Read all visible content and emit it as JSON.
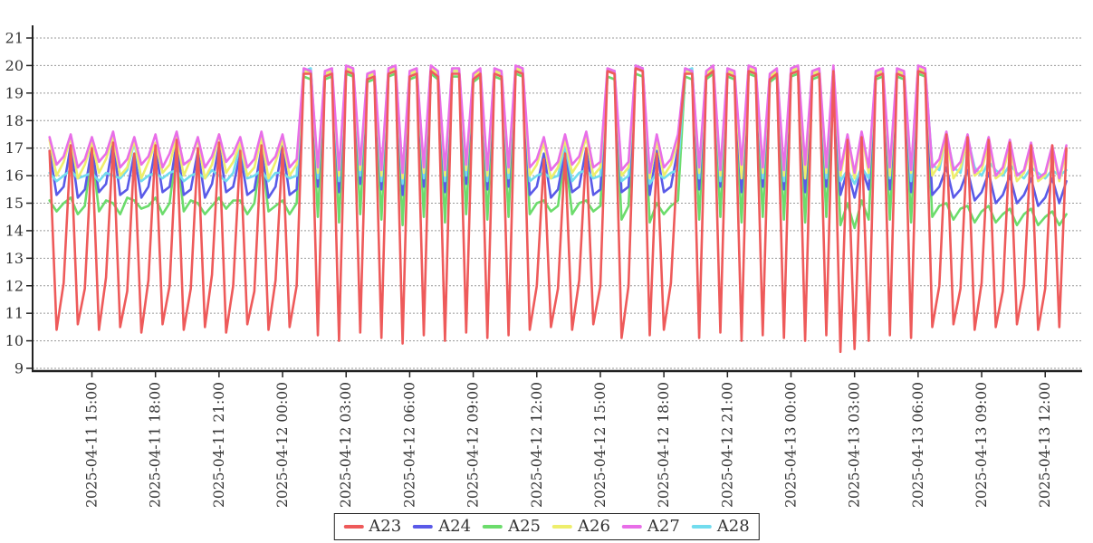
{
  "chart_data": {
    "type": "line",
    "title": "",
    "xlabel": "",
    "ylabel": "",
    "x_start": "2025-04-11 13:00",
    "x_step_minutes": 20,
    "x_tick_hours": [
      2,
      5,
      8,
      11,
      14,
      17,
      20,
      23,
      26,
      29,
      32,
      35,
      38,
      41,
      44,
      47
    ],
    "x_tick_labels": [
      "2025-04-11 15:00",
      "2025-04-11 18:00",
      "2025-04-11 21:00",
      "2025-04-12 00:00",
      "2025-04-12 03:00",
      "2025-04-12 06:00",
      "2025-04-12 09:00",
      "2025-04-12 12:00",
      "2025-04-12 15:00",
      "2025-04-12 18:00",
      "2025-04-12 21:00",
      "2025-04-13 00:00",
      "2025-04-13 03:00",
      "2025-04-13 06:00",
      "2025-04-13 09:00",
      "2025-04-13 12:00"
    ],
    "y_ticks": [
      9,
      10,
      11,
      12,
      13,
      14,
      15,
      16,
      17,
      18,
      19,
      20,
      21
    ],
    "ylim": [
      9,
      21.9
    ],
    "grid": "horizontal-dashed",
    "grid_color": "#999999",
    "axis_color": "#222222",
    "legend_position": "bottom-center",
    "series": [
      {
        "name": "A23",
        "color": "#ee5a5a",
        "values": [
          16.9,
          10.4,
          12.1,
          17.1,
          10.6,
          11.9,
          17.0,
          10.4,
          12.3,
          17.2,
          10.5,
          11.8,
          16.8,
          10.3,
          12.2,
          17.1,
          10.6,
          12.0,
          17.3,
          10.4,
          11.9,
          17.0,
          10.5,
          12.4,
          17.2,
          10.3,
          12.0,
          16.9,
          10.6,
          11.8,
          17.1,
          10.4,
          12.2,
          17.0,
          10.5,
          12.0,
          19.7,
          19.7,
          10.2,
          19.6,
          19.7,
          10.0,
          19.8,
          19.7,
          10.3,
          19.5,
          19.6,
          10.1,
          19.7,
          19.8,
          9.9,
          19.6,
          19.7,
          10.2,
          19.8,
          19.6,
          10.0,
          19.7,
          19.7,
          10.3,
          19.5,
          19.7,
          10.1,
          19.7,
          19.6,
          10.2,
          19.8,
          19.7,
          10.4,
          12.0,
          16.6,
          10.5,
          11.9,
          16.8,
          10.4,
          12.2,
          17.0,
          10.6,
          12.0,
          19.8,
          19.7,
          10.1,
          12.0,
          19.9,
          19.8,
          10.2,
          16.8,
          10.4,
          12.1,
          16.9,
          19.7,
          19.7,
          10.1,
          19.6,
          19.8,
          10.3,
          19.7,
          19.6,
          10.0,
          19.8,
          19.7,
          10.2,
          19.5,
          19.7,
          10.1,
          19.7,
          19.8,
          10.0,
          19.6,
          19.7,
          10.2,
          19.8,
          9.6,
          17.3,
          9.7,
          17.4,
          10.0,
          19.6,
          19.7,
          10.2,
          19.7,
          19.6,
          10.1,
          19.8,
          19.7,
          10.5,
          12.0,
          17.5,
          10.6,
          11.9,
          17.4,
          10.4,
          12.1,
          17.3,
          10.5,
          11.8,
          17.2,
          10.6,
          12.0,
          17.1,
          10.4,
          11.9,
          17.1,
          10.5,
          17.0
        ]
      },
      {
        "name": "A24",
        "color": "#5a5ae8",
        "values": [
          16.9,
          15.3,
          15.6,
          17.1,
          15.2,
          15.5,
          17.0,
          15.4,
          15.7,
          17.2,
          15.3,
          15.5,
          16.8,
          15.2,
          15.6,
          17.0,
          15.4,
          15.6,
          17.2,
          15.3,
          15.5,
          16.9,
          15.2,
          15.7,
          17.1,
          15.4,
          15.6,
          16.8,
          15.3,
          15.5,
          17.0,
          15.2,
          15.6,
          17.1,
          15.3,
          15.5,
          19.8,
          19.8,
          15.6,
          19.7,
          19.8,
          15.4,
          19.9,
          19.8,
          15.7,
          19.6,
          19.7,
          15.5,
          19.8,
          19.9,
          15.3,
          19.7,
          19.8,
          15.6,
          19.9,
          19.7,
          15.4,
          19.8,
          19.8,
          15.7,
          19.6,
          19.8,
          15.5,
          19.8,
          19.7,
          15.6,
          19.9,
          19.8,
          15.3,
          15.6,
          16.8,
          15.2,
          15.5,
          16.9,
          15.4,
          15.6,
          17.0,
          15.3,
          15.5,
          19.8,
          19.8,
          15.4,
          15.6,
          19.9,
          19.8,
          15.3,
          16.9,
          15.4,
          15.6,
          17.0,
          19.8,
          19.8,
          15.5,
          19.7,
          19.9,
          15.6,
          19.8,
          19.7,
          15.4,
          19.9,
          19.8,
          15.6,
          19.6,
          19.8,
          15.5,
          19.8,
          19.9,
          15.4,
          19.7,
          19.8,
          15.6,
          19.9,
          15.3,
          16.2,
          15.2,
          16.3,
          15.5,
          19.7,
          19.8,
          15.5,
          19.8,
          19.7,
          15.4,
          19.9,
          19.8,
          15.3,
          15.6,
          16.3,
          15.2,
          15.5,
          16.2,
          15.1,
          15.4,
          16.1,
          15.0,
          15.3,
          16.0,
          15.0,
          15.3,
          15.9,
          14.9,
          15.2,
          15.9,
          15.0,
          15.8
        ]
      },
      {
        "name": "A25",
        "color": "#6cdc6c",
        "values": [
          15.1,
          14.7,
          15.0,
          15.2,
          14.6,
          14.9,
          16.9,
          14.7,
          15.1,
          15.0,
          14.6,
          15.2,
          15.1,
          14.8,
          14.9,
          15.2,
          14.6,
          15.0,
          17.0,
          14.7,
          15.1,
          15.0,
          14.6,
          14.9,
          15.2,
          14.8,
          15.1,
          15.1,
          14.6,
          15.0,
          16.8,
          14.7,
          14.9,
          15.1,
          14.6,
          15.0,
          19.6,
          19.5,
          14.5,
          19.5,
          19.6,
          14.3,
          19.7,
          19.6,
          14.6,
          19.4,
          19.5,
          14.4,
          19.6,
          19.7,
          14.2,
          19.5,
          19.6,
          14.5,
          19.7,
          19.5,
          14.3,
          19.6,
          19.6,
          14.6,
          19.4,
          19.6,
          14.4,
          19.6,
          19.5,
          14.5,
          19.7,
          19.6,
          14.6,
          15.0,
          15.1,
          14.7,
          14.9,
          16.8,
          14.6,
          15.0,
          15.1,
          14.7,
          14.9,
          19.6,
          19.5,
          14.4,
          14.9,
          19.7,
          19.6,
          14.3,
          15.0,
          14.6,
          14.9,
          15.1,
          19.6,
          19.5,
          14.4,
          19.5,
          19.7,
          14.5,
          19.6,
          19.5,
          14.3,
          19.7,
          19.6,
          14.5,
          19.4,
          19.6,
          14.4,
          19.6,
          19.7,
          14.3,
          19.5,
          19.6,
          14.5,
          19.7,
          14.2,
          15.0,
          14.1,
          15.1,
          14.4,
          19.5,
          19.6,
          14.4,
          19.6,
          19.5,
          14.3,
          19.7,
          19.6,
          14.5,
          14.9,
          15.0,
          14.4,
          14.8,
          14.9,
          14.3,
          14.7,
          14.9,
          14.3,
          14.6,
          14.8,
          14.2,
          14.6,
          14.8,
          14.2,
          14.5,
          14.7,
          14.2,
          14.6
        ]
      },
      {
        "name": "A26",
        "color": "#eeee6c",
        "values": [
          17.3,
          16.0,
          16.5,
          17.4,
          15.9,
          16.4,
          17.2,
          16.1,
          16.6,
          17.4,
          16.0,
          16.3,
          17.3,
          15.9,
          16.5,
          17.2,
          16.1,
          16.4,
          17.4,
          16.0,
          16.6,
          17.3,
          15.9,
          16.4,
          17.5,
          16.1,
          16.5,
          17.2,
          16.0,
          16.3,
          17.4,
          15.9,
          16.5,
          17.3,
          16.0,
          16.4,
          19.8,
          19.7,
          16.1,
          19.7,
          19.8,
          16.0,
          19.9,
          19.8,
          16.2,
          19.6,
          19.7,
          16.0,
          19.8,
          19.9,
          15.9,
          19.7,
          19.8,
          16.1,
          19.9,
          19.7,
          16.0,
          19.8,
          19.8,
          16.2,
          19.6,
          19.8,
          16.0,
          19.8,
          19.7,
          16.1,
          19.9,
          19.8,
          16.0,
          16.4,
          17.2,
          15.9,
          16.3,
          17.3,
          16.1,
          16.5,
          17.4,
          16.0,
          16.3,
          19.8,
          19.7,
          16.0,
          16.3,
          19.9,
          19.8,
          15.9,
          17.3,
          16.0,
          16.4,
          17.3,
          19.8,
          19.7,
          16.1,
          19.7,
          19.9,
          16.0,
          19.8,
          19.7,
          15.9,
          19.9,
          19.8,
          16.1,
          19.6,
          19.8,
          16.0,
          19.8,
          19.9,
          15.9,
          19.7,
          19.8,
          16.1,
          19.9,
          16.0,
          17.4,
          15.9,
          17.5,
          16.1,
          19.7,
          19.8,
          16.0,
          19.8,
          19.7,
          16.1,
          19.9,
          19.8,
          16.0,
          16.4,
          17.4,
          15.9,
          16.3,
          17.3,
          16.0,
          16.2,
          17.2,
          15.9,
          16.1,
          17.1,
          15.8,
          16.1,
          17.0,
          15.8,
          16.0,
          17.0,
          15.8,
          16.9
        ]
      },
      {
        "name": "A27",
        "color": "#e86ee8",
        "values": [
          17.4,
          16.4,
          16.7,
          17.5,
          16.3,
          16.6,
          17.4,
          16.5,
          16.8,
          17.6,
          16.3,
          16.6,
          17.4,
          16.4,
          16.7,
          17.5,
          16.3,
          16.8,
          17.6,
          16.4,
          16.6,
          17.4,
          16.3,
          16.7,
          17.5,
          16.5,
          16.8,
          17.4,
          16.3,
          16.6,
          17.6,
          16.4,
          16.7,
          17.5,
          16.3,
          16.6,
          19.9,
          19.8,
          16.3,
          19.8,
          19.9,
          16.2,
          20.0,
          19.9,
          16.4,
          19.7,
          19.8,
          16.2,
          19.9,
          20.0,
          16.1,
          19.8,
          19.9,
          16.3,
          20.0,
          19.8,
          16.2,
          19.9,
          19.9,
          16.4,
          19.7,
          19.9,
          16.2,
          19.9,
          19.8,
          16.3,
          20.0,
          19.9,
          16.3,
          16.6,
          17.4,
          16.2,
          16.5,
          17.5,
          16.4,
          16.7,
          17.6,
          16.3,
          16.5,
          19.9,
          19.8,
          16.2,
          16.5,
          20.0,
          19.9,
          16.1,
          17.5,
          16.3,
          16.6,
          17.5,
          19.9,
          19.8,
          16.3,
          19.8,
          20.0,
          16.2,
          19.9,
          19.8,
          16.4,
          20.0,
          19.9,
          16.3,
          19.7,
          19.9,
          16.2,
          19.9,
          20.0,
          16.4,
          19.8,
          19.9,
          16.3,
          20.0,
          16.2,
          17.5,
          16.1,
          17.6,
          16.3,
          19.8,
          19.9,
          16.3,
          19.9,
          19.8,
          16.2,
          20.0,
          19.9,
          16.3,
          16.6,
          17.6,
          16.2,
          16.5,
          17.5,
          16.1,
          16.4,
          17.4,
          16.0,
          16.3,
          17.3,
          16.0,
          16.2,
          17.2,
          15.9,
          16.1,
          17.1,
          15.9,
          17.1
        ]
      },
      {
        "name": "A28",
        "color": "#72dcee",
        "values": [
          16.1,
          15.8,
          16.0,
          16.2,
          15.9,
          16.0,
          16.1,
          15.8,
          16.1,
          16.0,
          15.9,
          16.2,
          17.2,
          15.8,
          16.0,
          16.1,
          15.9,
          16.1,
          16.2,
          15.8,
          16.0,
          16.1,
          15.9,
          16.2,
          16.0,
          15.8,
          16.1,
          17.1,
          15.9,
          16.0,
          16.2,
          15.8,
          16.1,
          16.1,
          15.9,
          16.0,
          19.8,
          19.9,
          15.9,
          19.7,
          19.8,
          15.8,
          19.9,
          19.8,
          16.0,
          19.6,
          19.7,
          15.8,
          19.8,
          19.9,
          15.7,
          19.7,
          19.8,
          15.9,
          19.9,
          19.7,
          15.8,
          19.8,
          19.8,
          16.0,
          19.6,
          19.8,
          15.8,
          19.8,
          19.7,
          15.9,
          19.9,
          19.8,
          15.8,
          16.0,
          16.1,
          15.9,
          16.0,
          17.1,
          15.8,
          16.1,
          16.2,
          15.9,
          16.0,
          19.8,
          19.8,
          15.8,
          16.0,
          20.0,
          19.9,
          15.7,
          16.1,
          15.9,
          16.1,
          16.2,
          19.8,
          19.9,
          15.9,
          19.7,
          19.9,
          15.8,
          19.8,
          19.7,
          16.0,
          19.9,
          19.8,
          15.9,
          19.6,
          19.8,
          15.8,
          19.8,
          19.9,
          16.0,
          19.7,
          19.8,
          15.9,
          19.9,
          15.8,
          16.2,
          15.7,
          16.3,
          15.9,
          19.8,
          19.8,
          15.9,
          19.8,
          19.7,
          15.8,
          19.9,
          19.8,
          16.4,
          16.2,
          17.5,
          16.3,
          16.1,
          17.4,
          16.3,
          16.0,
          16.5,
          16.2,
          16.0,
          16.4,
          16.1,
          15.9,
          16.3,
          16.1,
          15.9,
          16.2,
          16.0,
          16.2
        ]
      }
    ],
    "z_order_bottom_to_top": [
      "A25",
      "A24",
      "A28",
      "A26",
      "A27",
      "A23"
    ]
  }
}
